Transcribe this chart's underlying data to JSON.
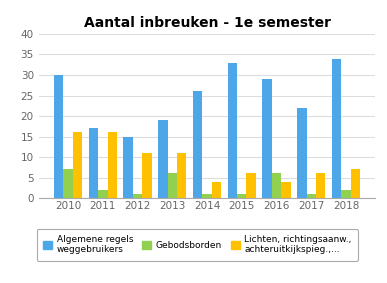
{
  "title": "Aantal inbreuken - 1e semester",
  "years": [
    2010,
    2011,
    2012,
    2013,
    2014,
    2015,
    2016,
    2017,
    2018
  ],
  "series": {
    "Algemene regels\nweggebruikers": {
      "values": [
        30,
        17,
        15,
        19,
        26,
        33,
        29,
        22,
        34
      ],
      "color": "#4da6e8"
    },
    "Gebodsborden": {
      "values": [
        7,
        2,
        1,
        6,
        1,
        1,
        6,
        1,
        2
      ],
      "color": "#92d050"
    },
    "Lichten, richtingsaanw.,\nachteruitkijkspieg.,...": {
      "values": [
        16,
        16,
        11,
        11,
        4,
        6,
        4,
        6,
        7
      ],
      "color": "#ffc000"
    }
  },
  "ylim": [
    0,
    40
  ],
  "yticks": [
    0,
    5,
    10,
    15,
    20,
    25,
    30,
    35,
    40
  ],
  "legend_labels": [
    "Algemene regels\nweggebruikers",
    "Gebodsborden",
    "Lichten, richtingsaanw.,\nachteruitkijkspieg.,..."
  ],
  "bar_width": 0.27,
  "background_color": "#ffffff",
  "grid_color": "#dddddd",
  "title_fontsize": 10,
  "tick_fontsize": 7.5,
  "legend_fontsize": 6.5
}
